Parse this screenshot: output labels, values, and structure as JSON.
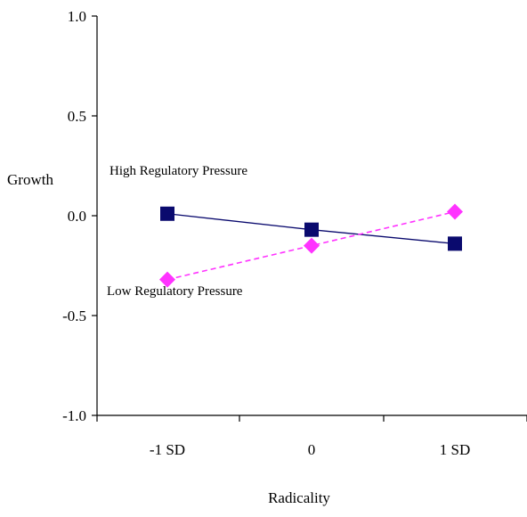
{
  "chart_data": {
    "type": "line",
    "title": "",
    "xlabel": "Radicality",
    "ylabel": "Growth",
    "categories": [
      "-1 SD",
      "0",
      "1 SD"
    ],
    "ylim": [
      -1.0,
      1.0
    ],
    "yticks": [
      "1.0",
      "0.5",
      "0.0",
      "-0.5",
      "-1.0"
    ],
    "ytick_values": [
      1.0,
      0.5,
      0.0,
      -0.5,
      -1.0
    ],
    "grid": false,
    "series": [
      {
        "name": "High Regulatory Pressure",
        "values": [
          0.01,
          -0.07,
          -0.14
        ],
        "color": "#0a0a6e",
        "marker": "square",
        "line_style": "solid"
      },
      {
        "name": "Low Regulatory Pressure",
        "values": [
          -0.32,
          -0.15,
          0.02
        ],
        "color": "#ff33ff",
        "marker": "diamond",
        "line_style": "dashed"
      }
    ],
    "annotations": [
      "High Regulatory Pressure",
      "Low Regulatory Pressure"
    ]
  }
}
